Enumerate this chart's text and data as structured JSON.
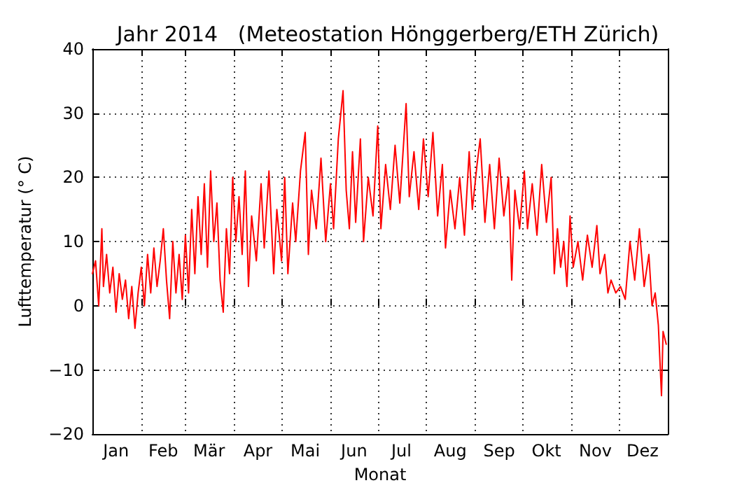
{
  "chart_data": {
    "type": "line",
    "title": "Jahr 2014   (Meteostation Hönggerberg/ETH Zürich)",
    "xlabel": "Monat",
    "ylabel": "Lufttemperatur (° C)",
    "xlim": [
      "2014-01-01",
      "2015-01-01"
    ],
    "xticks": [
      {
        "value": "2014-01-16",
        "label": "Jan"
      },
      {
        "value": "2014-02-01",
        "label": null
      },
      {
        "value": "2014-02-15",
        "label": "Feb"
      },
      {
        "value": "2014-03-01",
        "label": null
      },
      {
        "value": "2014-03-16",
        "label": "Mär"
      },
      {
        "value": "2014-04-01",
        "label": null
      },
      {
        "value": "2014-04-16",
        "label": "Apr"
      },
      {
        "value": "2014-05-01",
        "label": null
      },
      {
        "value": "2014-05-16",
        "label": "Mai"
      },
      {
        "value": "2014-06-01",
        "label": null
      },
      {
        "value": "2014-06-16",
        "label": "Jun"
      },
      {
        "value": "2014-07-01",
        "label": null
      },
      {
        "value": "2014-07-16",
        "label": "Jul"
      },
      {
        "value": "2014-08-01",
        "label": null
      },
      {
        "value": "2014-08-16",
        "label": "Aug"
      },
      {
        "value": "2014-09-01",
        "label": null
      },
      {
        "value": "2014-09-16",
        "label": "Sep"
      },
      {
        "value": "2014-10-01",
        "label": null
      },
      {
        "value": "2014-10-16",
        "label": "Okt"
      },
      {
        "value": "2014-11-01",
        "label": null
      },
      {
        "value": "2014-11-16",
        "label": "Nov"
      },
      {
        "value": "2014-12-01",
        "label": null
      },
      {
        "value": "2014-12-16",
        "label": "Dez"
      }
    ],
    "ylim": [
      -20,
      40
    ],
    "yticks": [
      {
        "value": -20,
        "label": "−20"
      },
      {
        "value": -10,
        "label": "−10"
      },
      0,
      10,
      20,
      30,
      40
    ],
    "grid": true,
    "marker": "none",
    "line_style": "solid",
    "x": [
      "2014-01-01",
      "2014-01-03",
      "2014-01-05",
      "2014-01-07",
      "2014-01-08",
      "2014-01-10",
      "2014-01-12",
      "2014-01-14",
      "2014-01-16",
      "2014-01-18",
      "2014-01-20",
      "2014-01-22",
      "2014-01-24",
      "2014-01-26",
      "2014-01-28",
      "2014-01-30",
      "2014-02-01",
      "2014-02-03",
      "2014-02-05",
      "2014-02-07",
      "2014-02-09",
      "2014-02-11",
      "2014-02-13",
      "2014-02-15",
      "2014-02-17",
      "2014-02-19",
      "2014-02-21",
      "2014-02-23",
      "2014-02-25",
      "2014-02-27",
      "2014-03-01",
      "2014-03-03",
      "2014-03-05",
      "2014-03-07",
      "2014-03-09",
      "2014-03-11",
      "2014-03-13",
      "2014-03-15",
      "2014-03-17",
      "2014-03-19",
      "2014-03-21",
      "2014-03-23",
      "2014-03-25",
      "2014-03-27",
      "2014-03-29",
      "2014-03-31",
      "2014-04-02",
      "2014-04-04",
      "2014-04-06",
      "2014-04-08",
      "2014-04-10",
      "2014-04-12",
      "2014-04-15",
      "2014-04-18",
      "2014-04-20",
      "2014-04-23",
      "2014-04-26",
      "2014-04-28",
      "2014-05-01",
      "2014-05-03",
      "2014-05-05",
      "2014-05-08",
      "2014-05-10",
      "2014-05-13",
      "2014-05-16",
      "2014-05-18",
      "2014-05-20",
      "2014-05-23",
      "2014-05-26",
      "2014-05-29",
      "2014-06-01",
      "2014-06-03",
      "2014-06-06",
      "2014-06-09",
      "2014-06-11",
      "2014-06-13",
      "2014-06-15",
      "2014-06-17",
      "2014-06-20",
      "2014-06-22",
      "2014-06-25",
      "2014-06-28",
      "2014-07-01",
      "2014-07-03",
      "2014-07-06",
      "2014-07-09",
      "2014-07-12",
      "2014-07-15",
      "2014-07-19",
      "2014-07-21",
      "2014-07-24",
      "2014-07-27",
      "2014-07-30",
      "2014-08-02",
      "2014-08-05",
      "2014-08-08",
      "2014-08-11",
      "2014-08-13",
      "2014-08-16",
      "2014-08-19",
      "2014-08-22",
      "2014-08-25",
      "2014-08-28",
      "2014-08-30",
      "2014-09-02",
      "2014-09-04",
      "2014-09-07",
      "2014-09-10",
      "2014-09-13",
      "2014-09-16",
      "2014-09-19",
      "2014-09-22",
      "2014-09-24",
      "2014-09-26",
      "2014-09-29",
      "2014-10-02",
      "2014-10-04",
      "2014-10-07",
      "2014-10-10",
      "2014-10-13",
      "2014-10-16",
      "2014-10-19",
      "2014-10-21",
      "2014-10-23",
      "2014-10-25",
      "2014-10-27",
      "2014-10-29",
      "2014-10-31",
      "2014-11-02",
      "2014-11-05",
      "2014-11-08",
      "2014-11-11",
      "2014-11-14",
      "2014-11-17",
      "2014-11-19",
      "2014-11-22",
      "2014-11-24",
      "2014-11-26",
      "2014-11-29",
      "2014-12-02",
      "2014-12-05",
      "2014-12-08",
      "2014-12-11",
      "2014-12-14",
      "2014-12-17",
      "2014-12-20",
      "2014-12-22",
      "2014-12-24",
      "2014-12-26",
      "2014-12-28",
      "2014-12-29",
      "2014-12-31"
    ],
    "series": [
      {
        "color": "#ff0000",
        "values": [
          5,
          7,
          0,
          12,
          3,
          8,
          2,
          6,
          -1,
          5,
          1,
          4,
          -2,
          3,
          -3.5,
          2,
          6,
          0,
          8,
          2,
          9,
          3,
          7,
          12,
          4,
          -2,
          10,
          2,
          8,
          1,
          11,
          2,
          15,
          5,
          17,
          8,
          19,
          6,
          21,
          10,
          16,
          4,
          -1,
          12,
          5,
          20,
          10,
          17,
          8,
          21,
          3,
          14,
          7,
          19,
          9,
          21,
          5,
          15,
          7,
          20,
          5,
          16,
          10,
          21,
          27,
          8,
          18,
          12,
          23,
          10,
          19,
          12,
          26,
          33.5,
          18,
          12,
          24,
          13,
          26,
          10,
          20,
          14,
          28,
          12,
          22,
          15,
          25,
          16,
          31.5,
          17,
          24,
          15,
          26,
          17,
          27,
          14,
          22,
          9,
          18,
          12,
          20,
          11,
          24,
          15,
          22,
          26,
          13,
          22,
          12,
          23,
          14,
          20,
          4,
          18,
          12,
          21,
          12,
          19,
          11,
          22,
          13,
          20,
          5,
          12,
          6,
          10,
          3,
          14,
          6,
          10,
          4,
          11,
          6,
          12.5,
          5,
          8,
          2,
          4,
          2,
          3,
          1,
          10,
          4,
          12,
          3,
          8,
          0,
          2,
          -3,
          -14,
          -4,
          -6
        ]
      }
    ]
  }
}
